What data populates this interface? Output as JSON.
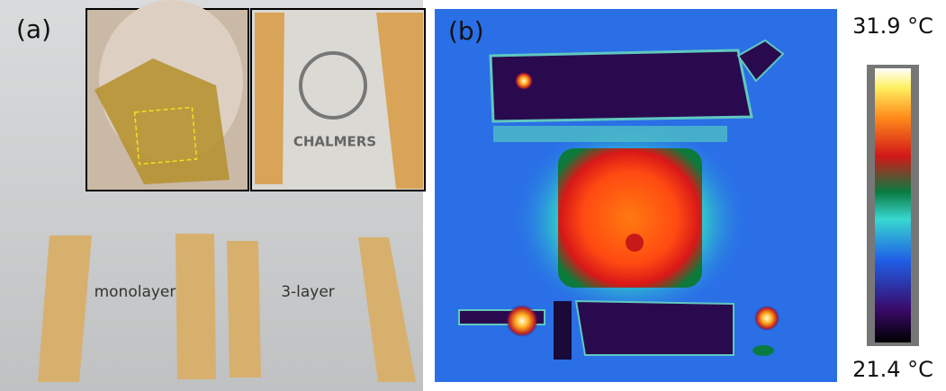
{
  "panel_a": {
    "label": "(a)",
    "logo_text": "CHALMERS",
    "strip_labels": [
      "monolayer",
      "3-layer"
    ]
  },
  "panel_b": {
    "label": "(b)",
    "colorbar": {
      "max_label": "31.9 °C",
      "min_label": "21.4 °C"
    }
  }
}
